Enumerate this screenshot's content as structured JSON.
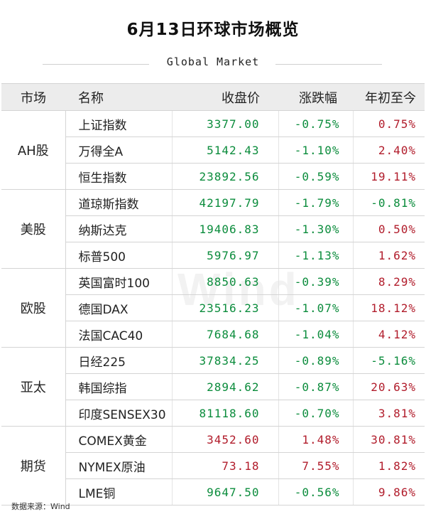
{
  "title": "6月13日环球市场概览",
  "subtitle": "Global Market",
  "watermark": "Wind",
  "source": "数据来源：Wind",
  "headers": {
    "market": "市场",
    "name": "名称",
    "close": "收盘价",
    "change": "涨跌幅",
    "ytd": "年初至今"
  },
  "colors": {
    "up": "#b11c2b",
    "down": "#0b8c3c"
  },
  "groups": [
    {
      "market": "AH股",
      "rows": [
        {
          "name": "上证指数",
          "close": "3377.00",
          "change": "-0.75%",
          "ytd": "0.75%"
        },
        {
          "name": "万得全A",
          "close": "5142.43",
          "change": "-1.10%",
          "ytd": "2.40%"
        },
        {
          "name": "恒生指数",
          "close": "23892.56",
          "change": "-0.59%",
          "ytd": "19.11%"
        }
      ]
    },
    {
      "market": "美股",
      "rows": [
        {
          "name": "道琼斯指数",
          "close": "42197.79",
          "change": "-1.79%",
          "ytd": "-0.81%"
        },
        {
          "name": "纳斯达克",
          "close": "19406.83",
          "change": "-1.30%",
          "ytd": "0.50%"
        },
        {
          "name": "标普500",
          "close": "5976.97",
          "change": "-1.13%",
          "ytd": "1.62%"
        }
      ]
    },
    {
      "market": "欧股",
      "rows": [
        {
          "name": "英国富时100",
          "close": "8850.63",
          "change": "-0.39%",
          "ytd": "8.29%"
        },
        {
          "name": "德国DAX",
          "close": "23516.23",
          "change": "-1.07%",
          "ytd": "18.12%"
        },
        {
          "name": "法国CAC40",
          "close": "7684.68",
          "change": "-1.04%",
          "ytd": "4.12%"
        }
      ]
    },
    {
      "market": "亚太",
      "rows": [
        {
          "name": "日经225",
          "close": "37834.25",
          "change": "-0.89%",
          "ytd": "-5.16%"
        },
        {
          "name": "韩国综指",
          "close": "2894.62",
          "change": "-0.87%",
          "ytd": "20.63%"
        },
        {
          "name": "印度SENSEX30",
          "close": "81118.60",
          "change": "-0.70%",
          "ytd": "3.81%"
        }
      ]
    },
    {
      "market": "期货",
      "rows": [
        {
          "name": "COMEX黄金",
          "close": "3452.60",
          "change": "1.48%",
          "ytd": "30.81%"
        },
        {
          "name": "NYMEX原油",
          "close": "73.18",
          "change": "7.55%",
          "ytd": "1.82%"
        },
        {
          "name": "LME铜",
          "close": "9647.50",
          "change": "-0.56%",
          "ytd": "9.86%"
        }
      ]
    }
  ]
}
